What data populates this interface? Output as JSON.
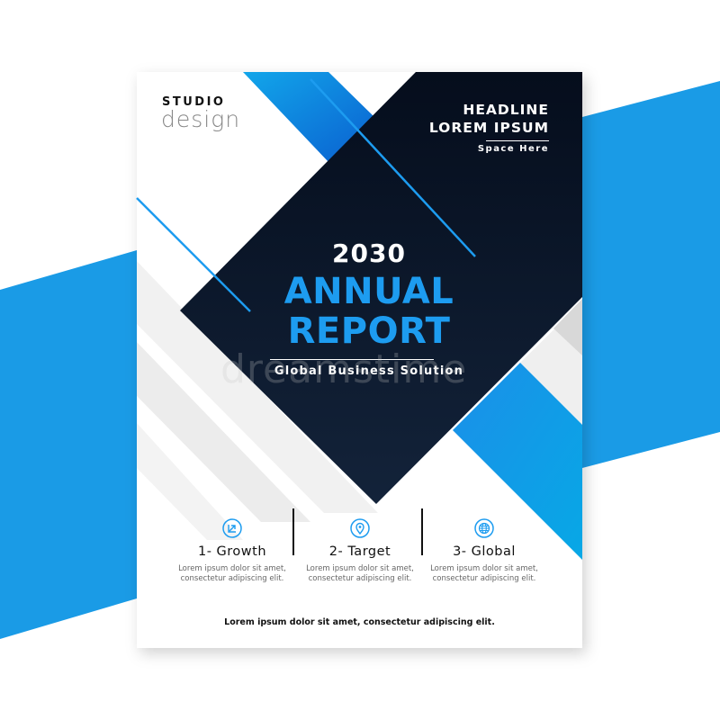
{
  "brand": {
    "line1": "STUDIO",
    "line2": "design"
  },
  "headline": {
    "line1": "HEADLINE",
    "line2": "LOREM IPSUM",
    "tagline": "Space Here"
  },
  "cover": {
    "year": "2030",
    "title_line1": "ANNUAL",
    "title_line2": "REPORT",
    "subtitle": "Global Business Solution"
  },
  "watermark": "dreamstime",
  "features": [
    {
      "icon": "growth-chart-icon",
      "label": "1- Growth",
      "desc": "Lorem ipsum dolor sit amet, consectetur adipiscing elit."
    },
    {
      "icon": "location-pin-icon",
      "label": "2- Target",
      "desc": "Lorem ipsum dolor sit amet, consectetur adipiscing elit."
    },
    {
      "icon": "globe-icon",
      "label": "3- Global",
      "desc": "Lorem ipsum dolor sit amet, consectetur adipiscing elit."
    }
  ],
  "footer": "Lorem ipsum dolor sit amet, consectetur adipiscing elit.",
  "colors": {
    "accent": "#1d9cf0",
    "dark": "#0d1626",
    "band": "#1a9be6"
  }
}
